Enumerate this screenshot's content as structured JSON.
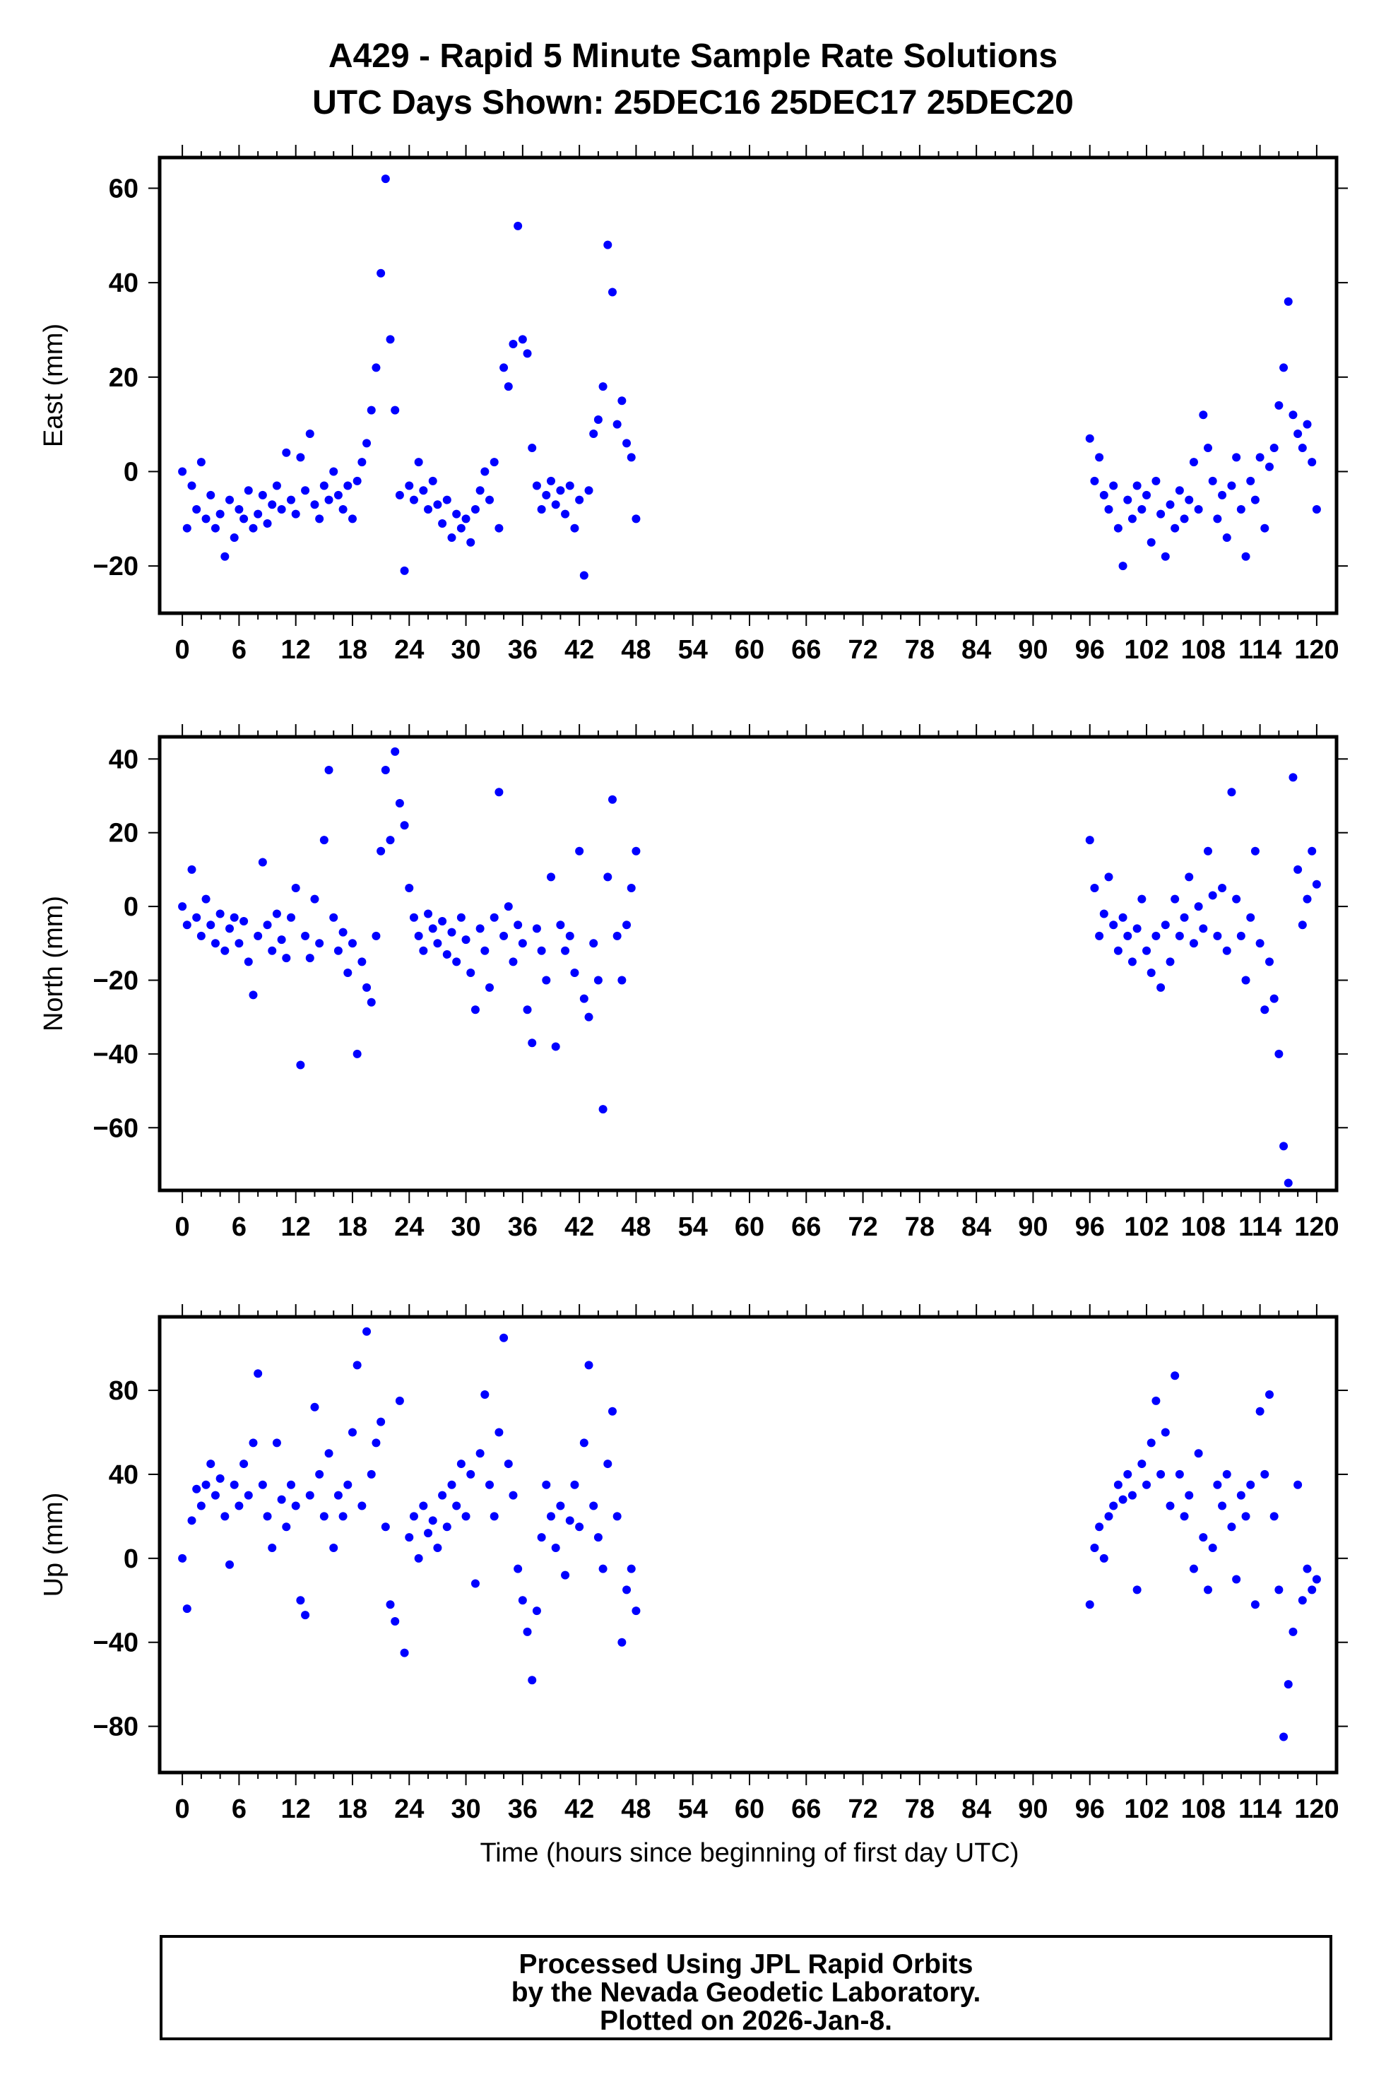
{
  "title_line1": "A429 - Rapid 5 Minute Sample Rate Solutions",
  "title_line2": "UTC Days Shown:  25DEC16 25DEC17 25DEC20",
  "footer": {
    "line1": "Processed Using JPL Rapid Orbits",
    "line2": "by the Nevada Geodetic Laboratory.",
    "line3": "Plotted on 2026-Jan-8."
  },
  "colors": {
    "points": "#0000ff",
    "axes": "#000000"
  },
  "chart_data": [
    {
      "type": "scatter",
      "id": "east",
      "ylabel": "East (mm)",
      "xlabel": "",
      "xlim": [
        -2.4,
        122.1
      ],
      "ylim": [
        -30,
        66.5
      ],
      "xticks": [
        "0",
        "6",
        "12",
        "18",
        "24",
        "30",
        "36",
        "42",
        "48",
        "54",
        "60",
        "66",
        "72",
        "78",
        "84",
        "90",
        "96",
        "102",
        "108",
        "114",
        "120"
      ],
      "yticks": [
        60,
        40,
        20,
        0,
        -20
      ],
      "ytick_labels": [
        "60",
        "40",
        "20",
        "0",
        "−20"
      ],
      "segments": [
        {
          "start": 0,
          "step": 0.5,
          "y": [
            0,
            -12,
            -3,
            -8,
            2,
            -10,
            -5,
            -12,
            -9,
            -18,
            -6,
            -14,
            -8,
            -10,
            -4,
            -12,
            -9,
            -5,
            -11,
            -7,
            -3,
            -8,
            4,
            -6,
            -9,
            3,
            -4,
            8,
            -7,
            -10,
            -3,
            -6,
            0,
            -5,
            -8,
            -3,
            -10,
            -2,
            2,
            6,
            13,
            22,
            42,
            62,
            28,
            13,
            -5,
            -21,
            -3,
            -6,
            2,
            -4,
            -8,
            -2,
            -7,
            -11,
            -6,
            -14,
            -9,
            -12,
            -10,
            -15,
            -8,
            -4,
            0,
            -6,
            2,
            -12,
            22,
            18,
            27,
            52,
            28,
            25,
            5,
            -3,
            -8,
            -5,
            -2,
            -7,
            -4,
            -9,
            -3,
            -12,
            -6,
            -22,
            -4,
            8,
            11,
            18,
            48,
            38,
            10,
            15,
            6,
            3,
            -10
          ]
        },
        {
          "start": 96,
          "step": 0.5,
          "y": [
            7,
            -2,
            3,
            -5,
            -8,
            -3,
            -12,
            -20,
            -6,
            -10,
            -3,
            -8,
            -5,
            -15,
            -2,
            -9,
            -18,
            -7,
            -12,
            -4,
            -10,
            -6,
            2,
            -8,
            12,
            5,
            -2,
            -10,
            -5,
            -14,
            -3,
            3,
            -8,
            -18,
            -2,
            -6,
            3,
            -12,
            1,
            5,
            14,
            22,
            36,
            12,
            8,
            5,
            10,
            2,
            -8
          ]
        }
      ]
    },
    {
      "type": "scatter",
      "id": "north",
      "ylabel": "North (mm)",
      "xlabel": "",
      "xlim": [
        -2.4,
        122.1
      ],
      "ylim": [
        -77,
        46
      ],
      "xticks": [
        "0",
        "6",
        "12",
        "18",
        "24",
        "30",
        "36",
        "42",
        "48",
        "54",
        "60",
        "66",
        "72",
        "78",
        "84",
        "90",
        "96",
        "102",
        "108",
        "114",
        "120"
      ],
      "yticks": [
        40,
        20,
        0,
        -20,
        -40,
        -60
      ],
      "ytick_labels": [
        "40",
        "20",
        "0",
        "−20",
        "−40",
        "−60"
      ],
      "segments": [
        {
          "start": 0,
          "step": 0.5,
          "y": [
            0,
            -5,
            10,
            -3,
            -8,
            2,
            -5,
            -10,
            -2,
            -12,
            -6,
            -3,
            -10,
            -4,
            -15,
            -24,
            -8,
            12,
            -5,
            -12,
            -2,
            -9,
            -14,
            -3,
            5,
            -43,
            -8,
            -14,
            2,
            -10,
            18,
            37,
            -3,
            -12,
            -7,
            -18,
            -10,
            -40,
            -15,
            -22,
            -26,
            -8,
            15,
            37,
            18,
            42,
            28,
            22,
            5,
            -3,
            -8,
            -12,
            -2,
            -6,
            -10,
            -4,
            -13,
            -7,
            -15,
            -3,
            -9,
            -18,
            -28,
            -6,
            -12,
            -22,
            -3,
            31,
            -8,
            0,
            -15,
            -5,
            -10,
            -28,
            -37,
            -6,
            -12,
            -20,
            8,
            -38,
            -5,
            -12,
            -8,
            -18,
            15,
            -25,
            -30,
            -10,
            -20,
            -55,
            8,
            29,
            -8,
            -20,
            -5,
            5,
            15
          ]
        },
        {
          "start": 96,
          "step": 0.5,
          "y": [
            18,
            5,
            -8,
            -2,
            8,
            -5,
            -12,
            -3,
            -8,
            -15,
            -6,
            2,
            -12,
            -18,
            -8,
            -22,
            -5,
            -15,
            2,
            -8,
            -3,
            8,
            -10,
            0,
            -6,
            15,
            3,
            -8,
            5,
            -12,
            31,
            2,
            -8,
            -20,
            -3,
            15,
            -10,
            -28,
            -15,
            -25,
            -40,
            -65,
            -75,
            35,
            10,
            -5,
            2,
            15,
            6
          ]
        }
      ]
    },
    {
      "type": "scatter",
      "id": "up",
      "ylabel": "Up (mm)",
      "xlabel": "Time (hours since beginning of first day UTC)",
      "xlim": [
        -2.4,
        122.1
      ],
      "ylim": [
        -102,
        115
      ],
      "xticks": [
        "0",
        "6",
        "12",
        "18",
        "24",
        "30",
        "36",
        "42",
        "48",
        "54",
        "60",
        "66",
        "72",
        "78",
        "84",
        "90",
        "96",
        "102",
        "108",
        "114",
        "120"
      ],
      "yticks": [
        80,
        40,
        0,
        -40,
        -80
      ],
      "ytick_labels": [
        "80",
        "40",
        "0",
        "−40",
        "−80"
      ],
      "segments": [
        {
          "start": 0,
          "step": 0.5,
          "y": [
            0,
            -24,
            18,
            33,
            25,
            35,
            45,
            30,
            38,
            20,
            -3,
            35,
            25,
            45,
            30,
            55,
            88,
            35,
            20,
            5,
            55,
            28,
            15,
            35,
            25,
            -20,
            -27,
            30,
            72,
            40,
            20,
            50,
            5,
            30,
            20,
            35,
            60,
            92,
            25,
            108,
            40,
            55,
            65,
            15,
            -22,
            -30,
            75,
            -45,
            10,
            20,
            0,
            25,
            12,
            18,
            5,
            30,
            15,
            35,
            25,
            45,
            20,
            40,
            -12,
            50,
            78,
            35,
            20,
            60,
            105,
            45,
            30,
            -5,
            -20,
            -35,
            -58,
            -25,
            10,
            35,
            20,
            5,
            25,
            -8,
            18,
            35,
            15,
            55,
            92,
            25,
            10,
            -5,
            45,
            70,
            20,
            -40,
            -15,
            -5,
            -25
          ]
        },
        {
          "start": 96,
          "step": 0.5,
          "y": [
            -22,
            5,
            15,
            0,
            20,
            25,
            35,
            28,
            40,
            30,
            -15,
            45,
            35,
            55,
            75,
            40,
            60,
            25,
            87,
            40,
            20,
            30,
            -5,
            50,
            10,
            -15,
            5,
            35,
            25,
            40,
            15,
            -10,
            30,
            20,
            35,
            -22,
            70,
            40,
            78,
            20,
            -15,
            -85,
            -60,
            -35,
            35,
            -20,
            -5,
            -15,
            -10
          ]
        }
      ]
    }
  ]
}
